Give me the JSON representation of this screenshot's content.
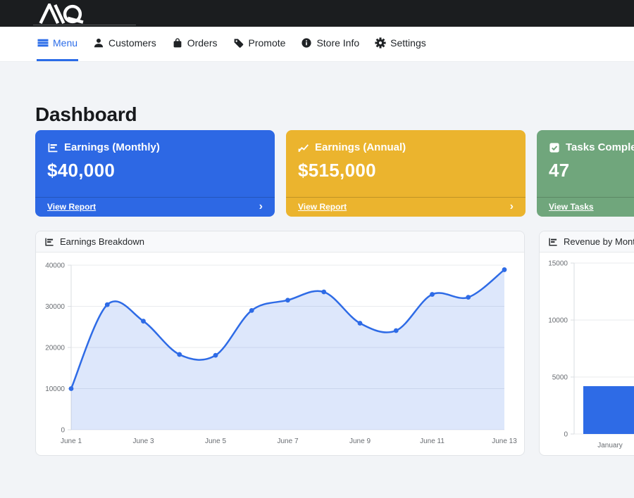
{
  "topbar": {
    "logo_text": "AIQ",
    "bg_color": "#1b1d1f"
  },
  "nav": {
    "items": [
      {
        "label": "Menu",
        "active": true
      },
      {
        "label": "Customers",
        "active": false
      },
      {
        "label": "Orders",
        "active": false
      },
      {
        "label": "Promote",
        "active": false
      },
      {
        "label": "Store Info",
        "active": false
      },
      {
        "label": "Settings",
        "active": false
      }
    ],
    "accent_color": "#2b6ce8"
  },
  "page_title": "Dashboard",
  "stat_cards": [
    {
      "title": "Earnings (Monthly)",
      "value": "$40,000",
      "link_label": "View Report",
      "chevron": "›",
      "color": "#2d68e4",
      "icon": "bar-chart-icon"
    },
    {
      "title": "Earnings (Annual)",
      "value": "$515,000",
      "link_label": "View Report",
      "chevron": "›",
      "color": "#ebb42e",
      "icon": "line-chart-icon"
    },
    {
      "title": "Tasks Completed",
      "value": "47",
      "link_label": "View Tasks",
      "chevron": "›",
      "color": "#70a67c",
      "icon": "checkbox-icon"
    }
  ],
  "chart_data": [
    {
      "type": "area",
      "title": "Earnings Breakdown",
      "x": [
        "June 1",
        "June 2",
        "June 3",
        "June 4",
        "June 5",
        "June 6",
        "June 7",
        "June 8",
        "June 9",
        "June 10",
        "June 11",
        "June 12",
        "June 13"
      ],
      "values": [
        10000,
        30400,
        26400,
        18300,
        18100,
        29000,
        31500,
        33500,
        25900,
        24100,
        32900,
        32200,
        38900
      ],
      "ylim": [
        0,
        40000
      ],
      "ytick_step": 10000,
      "xticks_every": 2,
      "grid": true,
      "legend": "none",
      "line_color": "#2e6be6",
      "fill_color": "rgba(46,107,230,0.16)",
      "point_color": "#2e6be6"
    },
    {
      "type": "bar",
      "title": "Revenue by Month",
      "categories": [
        "January"
      ],
      "values": [
        4200
      ],
      "ylim": [
        0,
        15000
      ],
      "ytick_step": 5000,
      "grid": true,
      "legend": "none",
      "bar_color": "#2e6be6"
    }
  ]
}
